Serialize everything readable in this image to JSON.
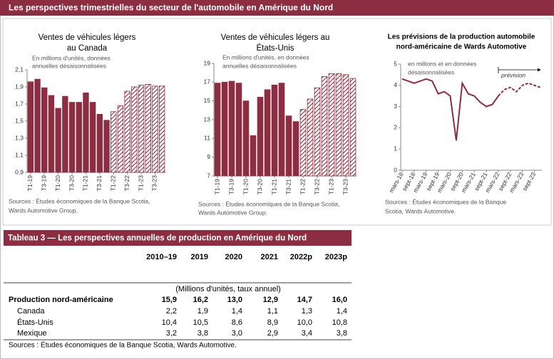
{
  "header": {
    "title": "Les perspectives trimestrielles du secteur de l'automobile en Amérique du Nord"
  },
  "chart_data": [
    {
      "type": "bar",
      "title": [
        "Ventes de véhicules légers",
        "au Canada"
      ],
      "subtitle": [
        "En millions d'unités, données",
        "annuelles désaisonnalisées"
      ],
      "categories": [
        "T1-19",
        null,
        "T3-19",
        null,
        "T1-20",
        null,
        "T3-20",
        null,
        "T1-21",
        null,
        "T3-21",
        null,
        "T1-22",
        null,
        "T3-22",
        null,
        "T1-23",
        null,
        "T3-23",
        null
      ],
      "values": [
        1.96,
        1.99,
        1.89,
        1.8,
        1.65,
        1.79,
        1.72,
        1.72,
        1.83,
        1.72,
        1.58,
        1.51,
        1.61,
        1.68,
        1.85,
        1.9,
        1.92,
        1.93,
        1.91,
        1.91
      ],
      "color": "#8c2d42",
      "forecast_from_index": 12,
      "ylim": [
        0.9,
        2.1
      ],
      "yticks": [
        {
          "value": 0.9,
          "label": "0,9"
        },
        {
          "value": 1.1,
          "label": "1,1"
        },
        {
          "value": 1.3,
          "label": "1,3"
        },
        {
          "value": 1.5,
          "label": "1,5"
        },
        {
          "value": 1.7,
          "label": "1,7"
        },
        {
          "value": 1.9,
          "label": "1,9"
        },
        {
          "value": 2.1,
          "label": "2,1"
        }
      ],
      "source": [
        "Sources : Études économiques de la Banque Scotia,",
        "Wards Automotive Group."
      ]
    },
    {
      "type": "bar",
      "title": [
        "Ventes de véhicules légers au",
        "États-Unis"
      ],
      "subtitle": [
        "En millions d'unités, en données",
        "annuelles désaisonnalisées"
      ],
      "categories": [
        "T1-19",
        null,
        "T3-19",
        null,
        "T1-20",
        null,
        "T3-20",
        null,
        "T1-21",
        null,
        "T3-21",
        null,
        "T1-22",
        null,
        "T3-22",
        null,
        "T1-23",
        null,
        "T3-23",
        null
      ],
      "values": [
        16.9,
        17.0,
        17.1,
        16.9,
        15.0,
        11.3,
        15.4,
        16.2,
        16.7,
        16.9,
        13.4,
        12.8,
        14.1,
        15.2,
        16.4,
        17.6,
        17.9,
        17.9,
        17.8,
        17.4
      ],
      "color": "#8c2d42",
      "forecast_from_index": 12,
      "ylim": [
        7,
        19
      ],
      "yticks": [
        7,
        9,
        11,
        13,
        15,
        17,
        19
      ],
      "source": [
        "Sources : Études économiques de la Banque Scotia,",
        "Wards Automotive Group."
      ]
    },
    {
      "type": "line",
      "title": [
        "Les prévisions de la production automobile",
        "nord-américaine de Wards Automotive"
      ],
      "annotation": [
        "en millions et en données",
        "désaisonnalisées"
      ],
      "forecast_label": "prévision",
      "categories": [
        "mars-18",
        null,
        "sept-18",
        null,
        "mars-19",
        null,
        "sept-19",
        null,
        "mars-20",
        null,
        "sept-20",
        null,
        "mars-21",
        null,
        "sept-21",
        null,
        "mars-22",
        null,
        "sept-22",
        null,
        "mars-23",
        null,
        "sept-23",
        null
      ],
      "values": [
        4.3,
        4.2,
        4.1,
        4.2,
        4.3,
        4.2,
        3.6,
        3.7,
        3.5,
        1.4,
        4.1,
        3.6,
        3.5,
        3.2,
        3.0,
        3.1,
        3.5,
        3.8,
        3.9,
        3.7,
        4.0,
        4.1,
        4.0,
        3.9
      ],
      "color": "#8c2d42",
      "forecast_from_index": 16,
      "ylim": [
        0,
        5
      ],
      "yticks": [
        0,
        1,
        2,
        3,
        4,
        5
      ],
      "source": [
        "Sources : Études économiques de la Banque",
        "Scotia, Wards Automotive."
      ]
    }
  ],
  "table": {
    "title": "Tableau 3 — Les perspectives annuelles de production en Amérique du Nord",
    "columns": [
      "2010–19",
      "2019",
      "2020",
      "2021",
      "2022p",
      "2023p"
    ],
    "unit": "(Millions d'unités, taux annuel)",
    "rows": [
      [
        "Production nord-américaine",
        "15,9",
        "16,2",
        "13,0",
        "12,9",
        "14,7",
        "16,0"
      ],
      [
        "Canada",
        "2,2",
        "1,9",
        "1,4",
        "1,1",
        "1,3",
        "1,4"
      ],
      [
        "États-Unis",
        "10,4",
        "10,5",
        "8,6",
        "8,9",
        "10,0",
        "10,8"
      ],
      [
        "Mexique",
        "3,2",
        "3,8",
        "3,0",
        "2,9",
        "3,4",
        "3,8"
      ]
    ],
    "source": "Sources : Études économiques de la Banque Scotia, Wards Automotive."
  }
}
